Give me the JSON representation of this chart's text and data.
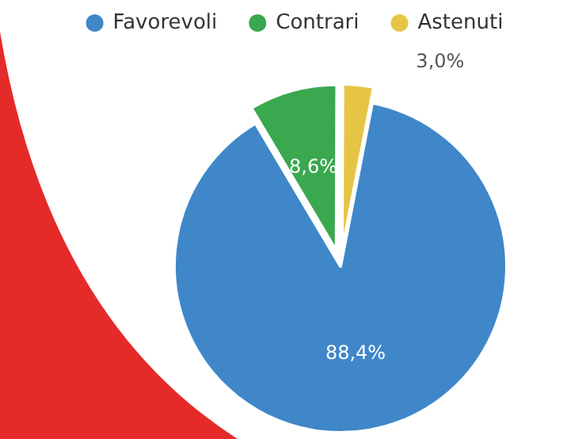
{
  "chart_data": {
    "type": "pie",
    "categories": [
      "Favorevoli",
      "Contrari",
      "Astenuti"
    ],
    "values": [
      88.4,
      8.6,
      3.0
    ],
    "colors": [
      "#3f87c9",
      "#3aa84e",
      "#e6c545"
    ],
    "value_labels": [
      "88,4%",
      "8,6%",
      "3,0%"
    ],
    "legend": "top"
  }
}
